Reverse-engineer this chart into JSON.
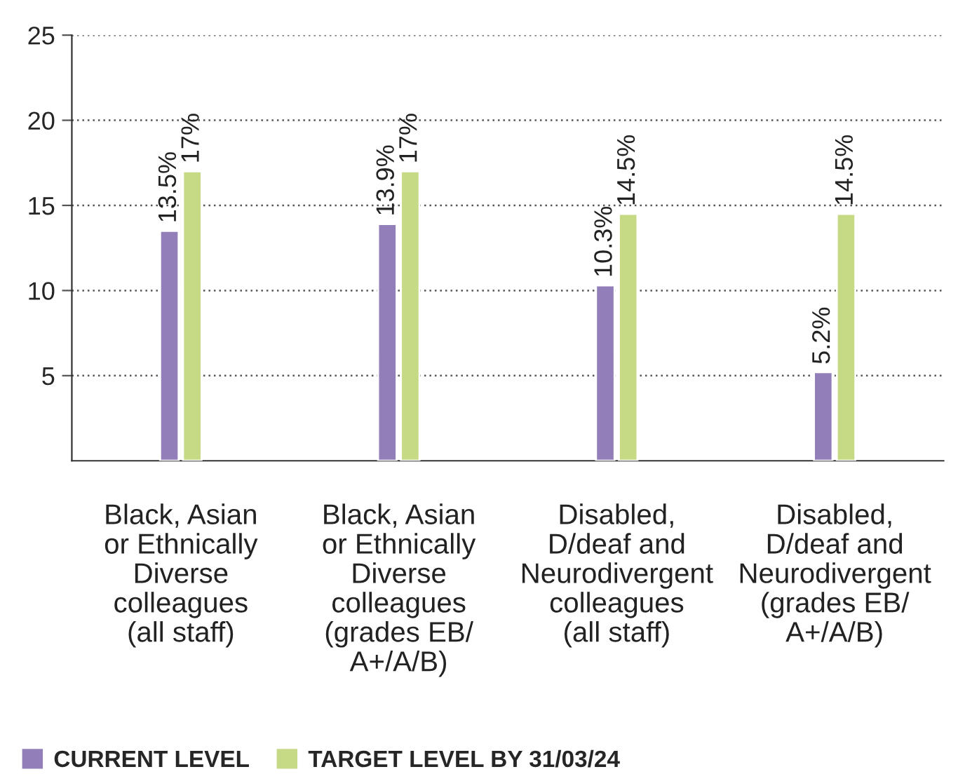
{
  "chart_data": {
    "type": "bar",
    "categories": [
      "Black, Asian\nor Ethnically\nDiverse\ncolleagues\n(all staff)",
      "Black, Asian\nor Ethnically\nDiverse\ncolleagues\n(grades EB/\nA+/A/B)",
      "Disabled,\nD/deaf and\nNeurodivergent\ncolleagues\n(all staff)",
      "Disabled,\nD/deaf and\nNeurodivergent\n(grades EB/\nA+/A/B)"
    ],
    "series": [
      {
        "name": "CURRENT LEVEL",
        "color": "#927fb9",
        "values": [
          13.5,
          13.9,
          10.3,
          5.2
        ],
        "value_labels": [
          "13.5%",
          "13.9%",
          "10.3%",
          "5.2%"
        ]
      },
      {
        "name": "TARGET LEVEL BY 31/03/24",
        "color": "#c6d985",
        "values": [
          17,
          17,
          14.5,
          14.5
        ],
        "value_labels": [
          "17%",
          "17%",
          "14.5%",
          "14.5%"
        ]
      }
    ],
    "ylim": [
      0,
      25
    ],
    "yticks": [
      5,
      10,
      15,
      20,
      25
    ],
    "grid": "y",
    "legend": "bottom"
  }
}
